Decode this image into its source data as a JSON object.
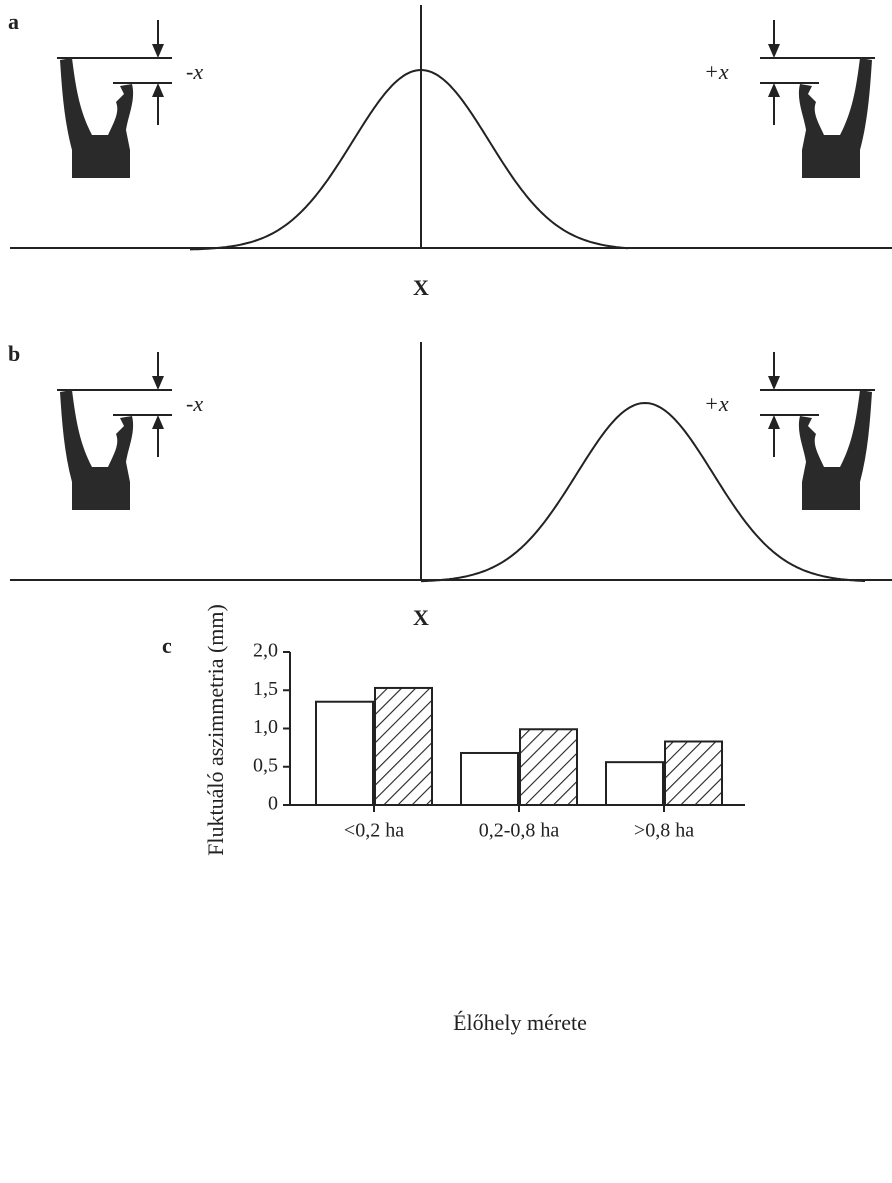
{
  "panels": [
    {
      "label": "a",
      "left_label": "-x",
      "right_label": "+x",
      "axis_label": "X"
    },
    {
      "label": "b",
      "left_label": "-x",
      "right_label": "+x",
      "axis_label": "X"
    }
  ],
  "chart_data": {
    "type": "bar",
    "label": "c",
    "ylabel": "Fluktuáló aszimmetria (mm)",
    "xlabel": "Élőhely mérete",
    "categories": [
      "<0,2 ha",
      "0,2-0,8 ha",
      ">0,8 ha"
    ],
    "series": [
      {
        "color": "#ffffff",
        "values": [
          1.35,
          0.68,
          0.56
        ]
      },
      {
        "color": "#222222",
        "hatch": true,
        "values": [
          1.53,
          0.99,
          0.83
        ]
      }
    ],
    "ylim": [
      0,
      2
    ],
    "yticks": [
      0,
      {
        "value": 0.5,
        "label": "0,5"
      },
      {
        "value": 1,
        "label": "1,0"
      },
      {
        "value": 1.5,
        "label": "1,5"
      },
      {
        "value": 2,
        "label": "2,0"
      }
    ]
  }
}
